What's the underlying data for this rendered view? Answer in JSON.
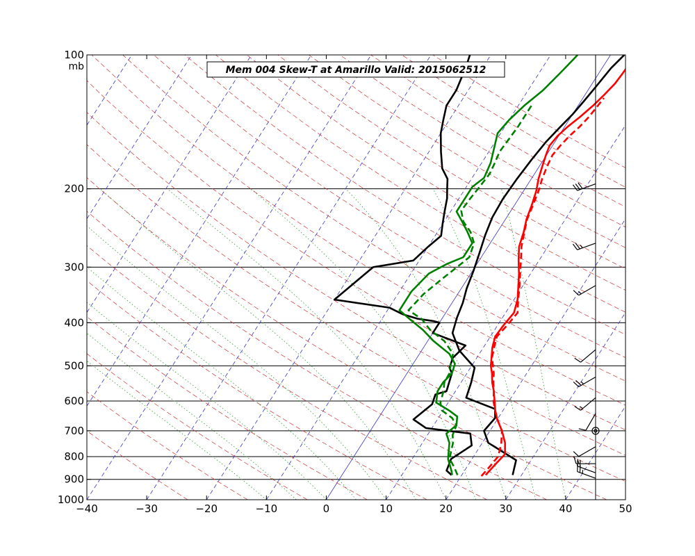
{
  "chart_data": {
    "type": "line",
    "title": "Mem 004  Skew-T at Amarillo   Valid: 2015062512",
    "xlabel": "",
    "ylabel": "",
    "y_unit_label": "mb",
    "y_scale": "log",
    "xlim": [
      -40,
      50
    ],
    "ylim": [
      1000,
      100
    ],
    "x_ticks": [
      "−40",
      "−30",
      "−20",
      "−10",
      "0",
      "10",
      "20",
      "30",
      "40",
      "50"
    ],
    "y_ticks": [
      {
        "p": 100,
        "label": "100"
      },
      {
        "p": 200,
        "label": "200"
      },
      {
        "p": 300,
        "label": "300"
      },
      {
        "p": 400,
        "label": "400"
      },
      {
        "p": 500,
        "label": "500"
      },
      {
        "p": 600,
        "label": "600"
      },
      {
        "p": 700,
        "label": "700"
      },
      {
        "p": 800,
        "label": "800"
      },
      {
        "p": 900,
        "label": "900"
      },
      {
        "p": 1000,
        "label": "1000"
      }
    ],
    "wind_barb_axis_x": 45,
    "series": [
      {
        "color": "#000000",
        "style": "solid",
        "points": [
          [
            28.5,
            880
          ],
          [
            27.5,
            815
          ],
          [
            21,
            745
          ],
          [
            19,
            700
          ],
          [
            19.5,
            655
          ],
          [
            18.5,
            625
          ],
          [
            12.5,
            590
          ],
          [
            11.7,
            545
          ],
          [
            10.7,
            505
          ],
          [
            6.3,
            462
          ],
          [
            3.3,
            422
          ],
          [
            2.4,
            390
          ],
          [
            1.8,
            361
          ],
          [
            0.9,
            335
          ],
          [
            0.2,
            307
          ],
          [
            -0.7,
            280
          ],
          [
            -1.7,
            254
          ],
          [
            -2.4,
            232
          ],
          [
            -2.6,
            211
          ],
          [
            -2.4,
            190
          ],
          [
            -2.0,
            172
          ],
          [
            -1.5,
            157
          ],
          [
            -0.7,
            145
          ],
          [
            0,
            136
          ],
          [
            0.5,
            127
          ],
          [
            1.0,
            117
          ],
          [
            1.5,
            107
          ],
          [
            2.3,
            100
          ]
        ]
      },
      {
        "color": "#000000",
        "style": "solid",
        "points": [
          [
            18.3,
            880
          ],
          [
            17.0,
            860
          ],
          [
            16.5,
            810
          ],
          [
            18.5,
            755
          ],
          [
            17,
            710
          ],
          [
            9,
            690
          ],
          [
            6,
            660
          ],
          [
            7.5,
            610
          ],
          [
            7,
            580
          ],
          [
            8.5,
            570
          ],
          [
            8,
            545
          ],
          [
            7.5,
            520
          ],
          [
            6.5,
            505
          ],
          [
            6,
            480
          ],
          [
            6.8,
            450
          ],
          [
            0,
            422
          ],
          [
            0,
            400
          ],
          [
            -1,
            397
          ],
          [
            -4,
            392
          ],
          [
            -7,
            383
          ],
          [
            -10,
            370
          ],
          [
            -20,
            355
          ],
          [
            -17,
            300
          ],
          [
            -11,
            290
          ],
          [
            -10,
            270
          ],
          [
            -9,
            255
          ],
          [
            -10,
            240
          ],
          [
            -11,
            225
          ],
          [
            -12,
            210
          ],
          [
            -13,
            200
          ],
          [
            -14,
            190
          ],
          [
            -16,
            180
          ],
          [
            -18,
            165
          ],
          [
            -20,
            150
          ],
          [
            -21,
            140
          ],
          [
            -22,
            130
          ],
          [
            -22,
            120
          ],
          [
            -22.5,
            112
          ],
          [
            -23,
            105
          ],
          [
            -23.5,
            100
          ]
        ]
      },
      {
        "color": "#008000",
        "style": "solid",
        "points": [
          [
            18.4,
            880
          ],
          [
            17.8,
            860
          ],
          [
            16,
            810
          ],
          [
            14.5,
            745
          ],
          [
            13,
            710
          ],
          [
            13.8,
            680
          ],
          [
            13,
            650
          ],
          [
            11,
            630
          ],
          [
            8,
            605
          ],
          [
            7,
            570
          ],
          [
            7,
            545
          ],
          [
            7.5,
            520
          ],
          [
            7,
            495
          ],
          [
            5,
            470
          ],
          [
            1,
            440
          ],
          [
            -2,
            415
          ],
          [
            -5,
            395
          ],
          [
            -8,
            375
          ],
          [
            -8,
            340
          ],
          [
            -7,
            310
          ],
          [
            -5,
            295
          ],
          [
            -3,
            285
          ],
          [
            -3,
            265
          ],
          [
            -5,
            250
          ],
          [
            -7,
            237
          ],
          [
            -9,
            225
          ],
          [
            -9,
            210
          ],
          [
            -9,
            198
          ],
          [
            -8,
            189
          ],
          [
            -8.5,
            175
          ],
          [
            -9.5,
            162
          ],
          [
            -10.5,
            150
          ],
          [
            -10,
            140
          ],
          [
            -9,
            130
          ],
          [
            -7.5,
            120
          ],
          [
            -6.5,
            110
          ],
          [
            -6,
            105
          ],
          [
            -5.5,
            100
          ]
        ]
      },
      {
        "color": "#008000",
        "style": "dashed",
        "points": [
          [
            19.3,
            880
          ],
          [
            17.9,
            845
          ],
          [
            16.2,
            808
          ],
          [
            15.1,
            745
          ],
          [
            14.2,
            715
          ],
          [
            13.8,
            680
          ],
          [
            12.3,
            655
          ],
          [
            9.8,
            630
          ],
          [
            8.7,
            605
          ],
          [
            8.0,
            570
          ],
          [
            7.2,
            545
          ],
          [
            7.1,
            520
          ],
          [
            6.3,
            495
          ],
          [
            5.6,
            470
          ],
          [
            2.8,
            440
          ],
          [
            -0.8,
            415
          ],
          [
            -3.4,
            392
          ],
          [
            -6.5,
            375
          ],
          [
            -5.7,
            345
          ],
          [
            -4.3,
            320
          ],
          [
            -3.0,
            300
          ],
          [
            -2.0,
            285
          ],
          [
            -2.7,
            265
          ],
          [
            -4.5,
            250
          ],
          [
            -6.8,
            237
          ],
          [
            -8.3,
            224
          ],
          [
            -8.1,
            210
          ],
          [
            -7.8,
            198
          ],
          [
            -7.5,
            185
          ],
          [
            -7.8,
            175
          ],
          [
            -8.2,
            165
          ],
          [
            -8.0,
            155
          ],
          [
            -7.8,
            145
          ],
          [
            -7.8,
            138
          ],
          [
            -7.8,
            130
          ]
        ]
      },
      {
        "color": "#ff0000",
        "style": "solid",
        "points": [
          [
            24,
            880
          ],
          [
            24.5,
            830
          ],
          [
            25,
            790
          ],
          [
            23.8,
            745
          ],
          [
            22,
            700
          ],
          [
            20,
            660
          ],
          [
            18.7,
            630
          ],
          [
            17.6,
            600
          ],
          [
            16.4,
            570
          ],
          [
            15.2,
            545
          ],
          [
            14.2,
            520
          ],
          [
            13.2,
            500
          ],
          [
            12.4,
            478
          ],
          [
            11.5,
            455
          ],
          [
            10.8,
            430
          ],
          [
            11.0,
            405
          ],
          [
            11.4,
            380
          ],
          [
            10.6,
            355
          ],
          [
            9.4,
            333
          ],
          [
            8.1,
            311
          ],
          [
            6.6,
            290
          ],
          [
            5.2,
            270
          ],
          [
            4.4,
            250
          ],
          [
            3.5,
            234
          ],
          [
            2.9,
            218
          ],
          [
            2.1,
            202
          ],
          [
            1.2,
            190
          ],
          [
            0.5,
            178
          ],
          [
            -0.1,
            168
          ],
          [
            -0.5,
            160
          ],
          [
            -0.2,
            152
          ],
          [
            0.5,
            145
          ],
          [
            1.5,
            138
          ],
          [
            2.5,
            130
          ],
          [
            3.2,
            123
          ],
          [
            3.8,
            116
          ],
          [
            4.0,
            110
          ],
          [
            4.2,
            100
          ]
        ]
      },
      {
        "color": "#ff0000",
        "style": "dashed",
        "points": [
          [
            23.4,
            885
          ],
          [
            23.8,
            840
          ],
          [
            24.1,
            800
          ],
          [
            23.3,
            750
          ],
          [
            22,
            700
          ],
          [
            20,
            660
          ],
          [
            18.7,
            630
          ],
          [
            17.4,
            600
          ],
          [
            16.4,
            570
          ],
          [
            15.4,
            545
          ],
          [
            14.5,
            520
          ],
          [
            13.3,
            495
          ],
          [
            12.5,
            478
          ],
          [
            11.8,
            455
          ],
          [
            11.1,
            430
          ],
          [
            11.6,
            405
          ],
          [
            12,
            380
          ],
          [
            10.7,
            355
          ],
          [
            9.6,
            333
          ],
          [
            8.3,
            311
          ],
          [
            7.0,
            290
          ],
          [
            5.6,
            270
          ],
          [
            4.5,
            250
          ],
          [
            3.6,
            234
          ],
          [
            3.1,
            218
          ],
          [
            2.5,
            202
          ],
          [
            1.8,
            190
          ],
          [
            1.3,
            178
          ],
          [
            1.0,
            168
          ],
          [
            1.3,
            160
          ],
          [
            1.8,
            152
          ],
          [
            2.5,
            145
          ],
          [
            3.0,
            138
          ],
          [
            3.3,
            130
          ],
          [
            3.5,
            125
          ]
        ]
      }
    ],
    "wind_barbs": [
      {
        "p": 895,
        "direction": 290,
        "speed": 25
      },
      {
        "p": 870,
        "direction": 290,
        "speed": 20
      },
      {
        "p": 830,
        "direction": 270,
        "speed": 15
      },
      {
        "p": 760,
        "direction": 240,
        "speed": 10
      },
      {
        "p": 700,
        "direction": 0,
        "speed": 0,
        "calm": true
      },
      {
        "p": 640,
        "direction": 210,
        "speed": 10
      },
      {
        "p": 590,
        "direction": 230,
        "speed": 15
      },
      {
        "p": 530,
        "direction": 240,
        "speed": 25
      },
      {
        "p": 460,
        "direction": 230,
        "speed": 10
      },
      {
        "p": 330,
        "direction": 240,
        "speed": 15
      },
      {
        "p": 265,
        "direction": 250,
        "speed": 25
      },
      {
        "p": 195,
        "direction": 250,
        "speed": 30
      }
    ]
  }
}
